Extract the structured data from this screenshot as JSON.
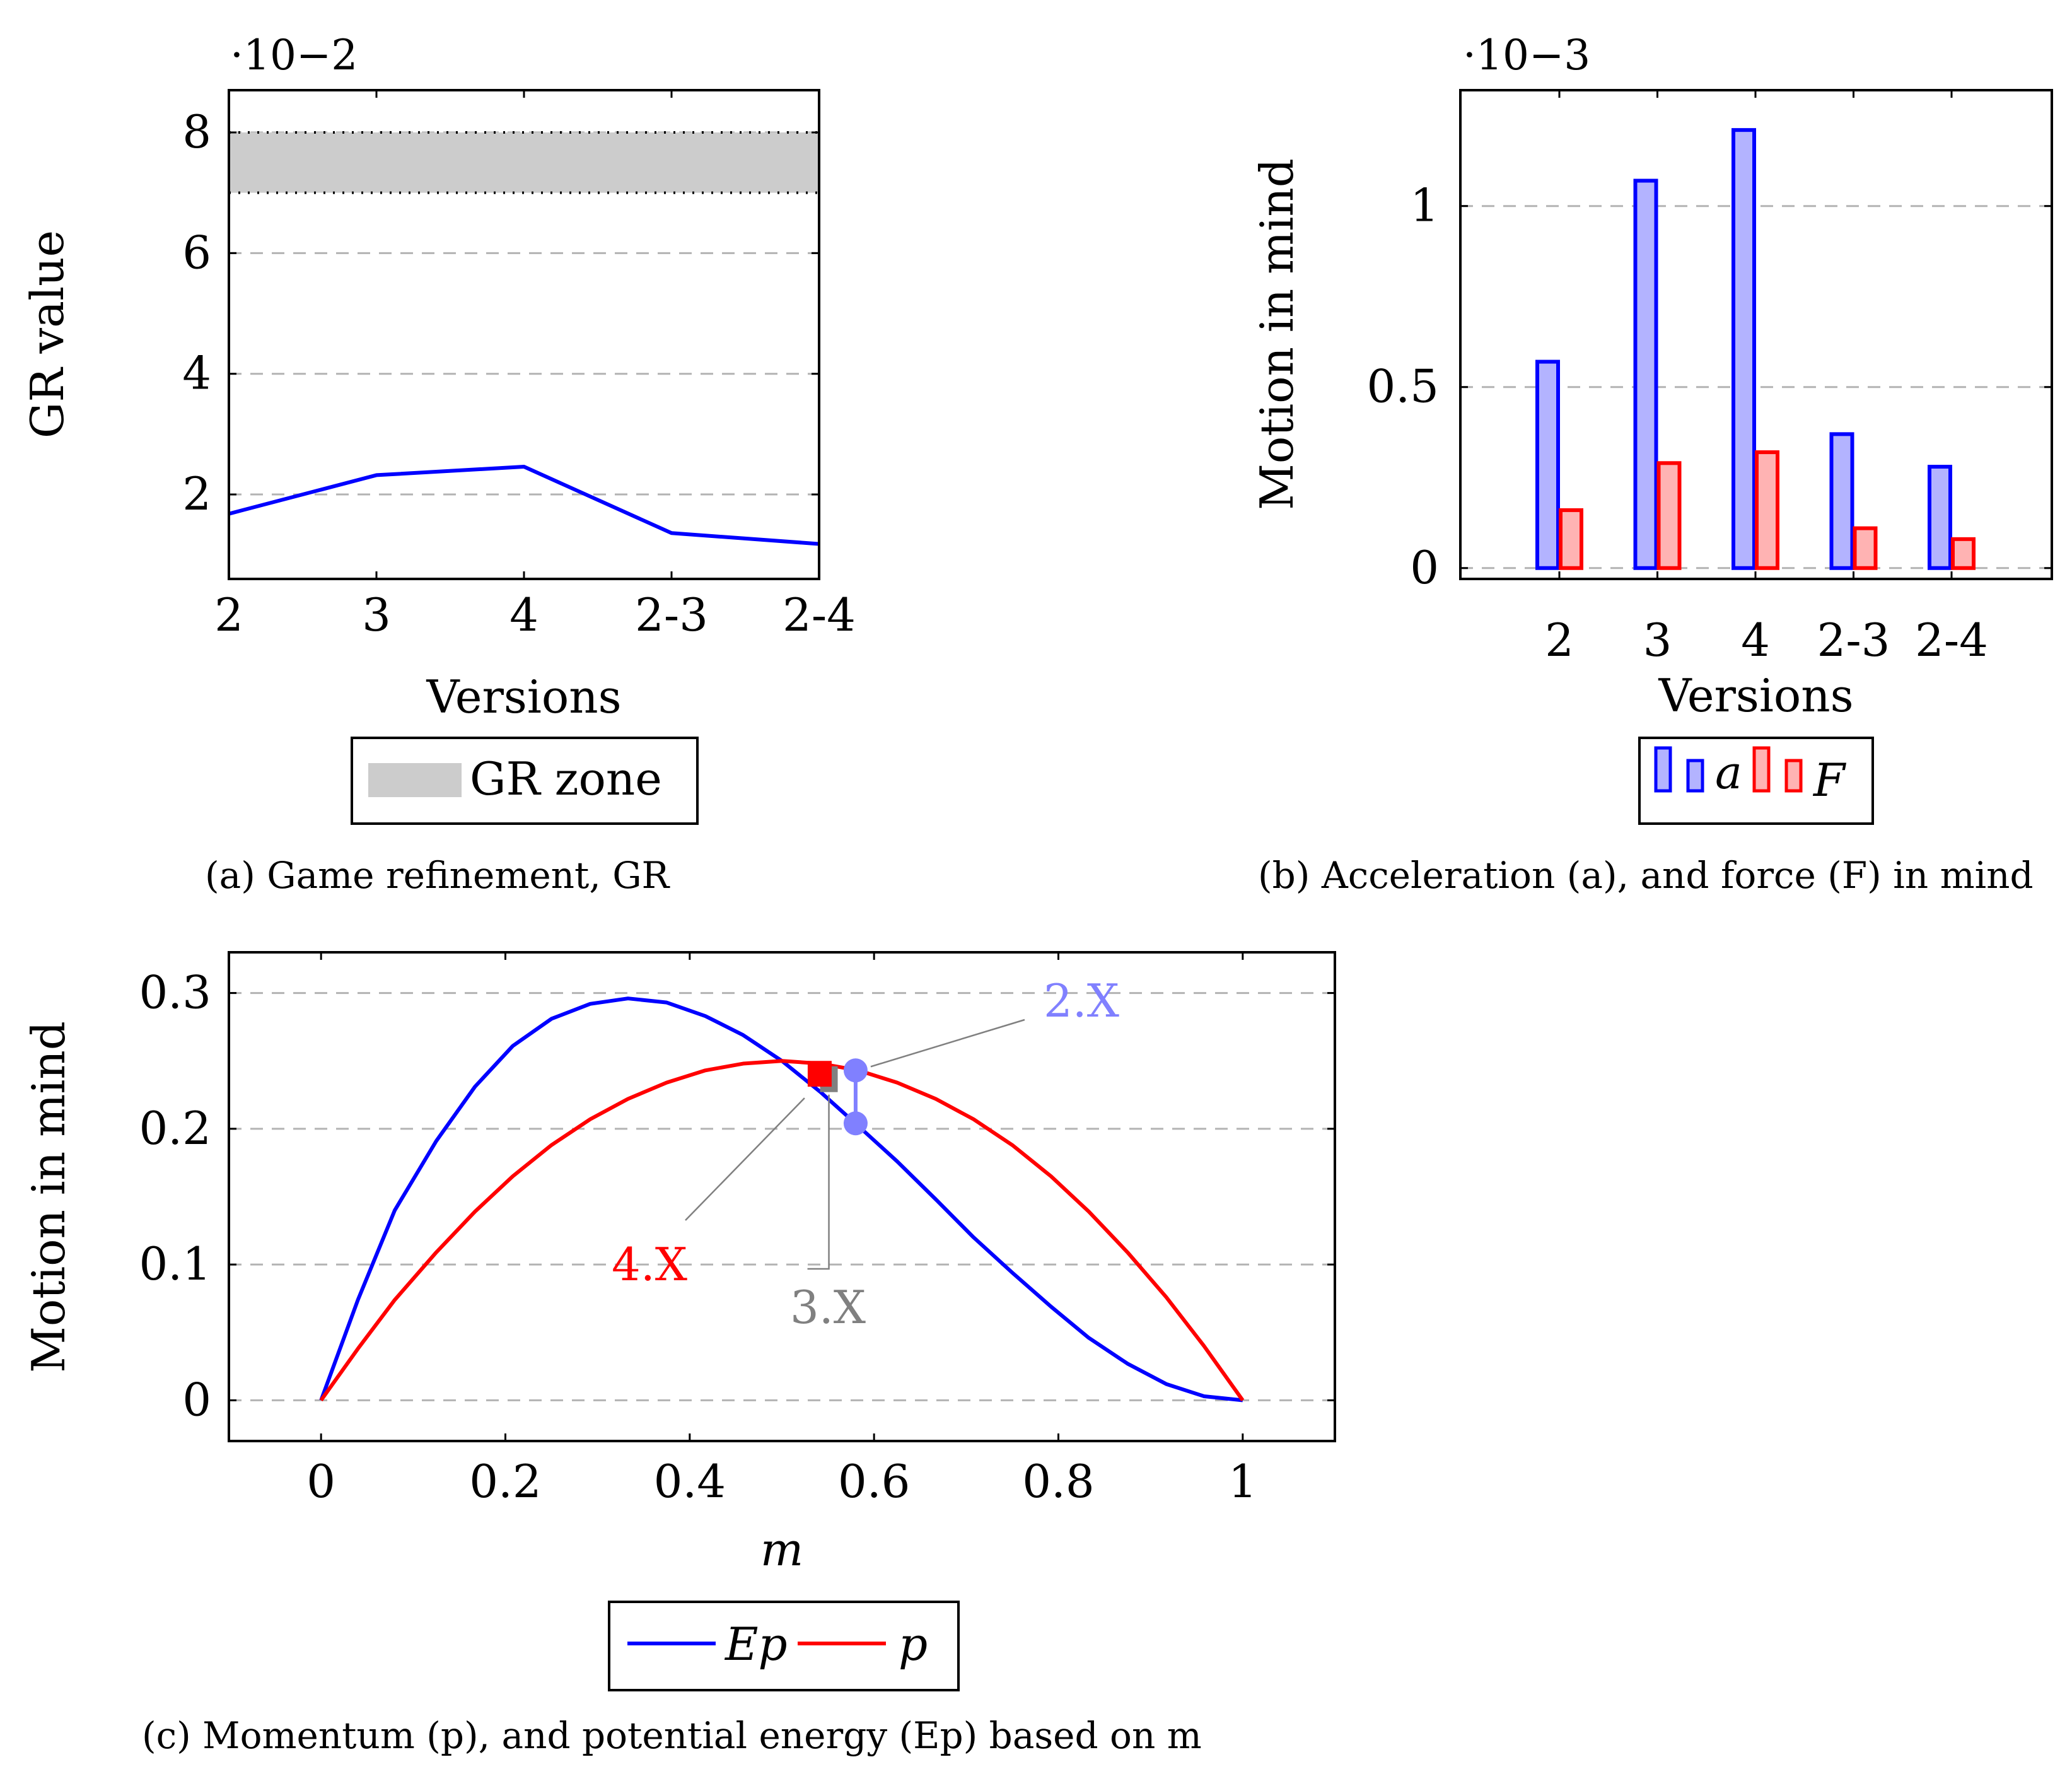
{
  "chart_data": [
    {
      "type": "line",
      "id": "a",
      "caption": "(a)  Game refinement, GR",
      "xlabel": "Versions",
      "ylabel": "GR value",
      "exponent_label": "·10−2",
      "categories": [
        "2",
        "3",
        "4",
        "2-3",
        "2-4"
      ],
      "series": [
        {
          "name": "GR",
          "values": [
            1.68,
            2.32,
            2.46,
            1.36,
            1.18
          ],
          "color": "#0000ff"
        }
      ],
      "band": {
        "name": "GR zone",
        "from": 7,
        "to": 8,
        "color": "#cccccc"
      },
      "yticks": [
        2,
        4,
        6,
        8
      ],
      "ylim": [
        0.6,
        8.7
      ],
      "legend": {
        "label": "GR zone"
      }
    },
    {
      "type": "bar",
      "id": "b",
      "caption": "(b)  Acceleration (a), and force (F) in mind",
      "xlabel": "Versions",
      "ylabel": "Motion in mind",
      "exponent_label": "·10−3",
      "categories": [
        "2",
        "3",
        "4",
        "2-3",
        "2-4"
      ],
      "series": [
        {
          "name": "a",
          "values": [
            0.57,
            1.07,
            1.21,
            0.37,
            0.28
          ],
          "color": "#0000ff",
          "fill": "#b3b3ff"
        },
        {
          "name": "F",
          "values": [
            0.16,
            0.29,
            0.32,
            0.11,
            0.08
          ],
          "color": "#ff0000",
          "fill": "#ffb3b3"
        }
      ],
      "yticks": [
        "0",
        "0.5",
        "1"
      ],
      "ylim": [
        -0.03,
        1.32
      ],
      "legend": {
        "labels": [
          "a",
          "F"
        ]
      }
    },
    {
      "type": "line",
      "id": "c",
      "caption": "(c)  Momentum (p), and potential energy (Ep) based on m",
      "xlabel": "m",
      "ylabel": "Motion in mind",
      "xlim": [
        -0.1,
        1.1
      ],
      "ylim": [
        -0.03,
        0.33
      ],
      "xticks": [
        "0",
        "0.2",
        "0.4",
        "0.6",
        "0.8",
        "1"
      ],
      "yticks": [
        "0",
        "0.1",
        "0.2",
        "0.3"
      ],
      "series": [
        {
          "name": "Ep",
          "color": "#0000ff",
          "x": [
            0,
            0.04,
            0.08,
            0.125,
            0.167,
            0.208,
            0.25,
            0.292,
            0.333,
            0.375,
            0.417,
            0.458,
            0.5,
            0.542,
            0.583,
            0.625,
            0.667,
            0.708,
            0.75,
            0.792,
            0.833,
            0.875,
            0.917,
            0.958,
            1
          ],
          "y": [
            0,
            0.074,
            0.14,
            0.191,
            0.231,
            0.261,
            0.281,
            0.292,
            0.296,
            0.293,
            0.283,
            0.269,
            0.25,
            0.227,
            0.202,
            0.176,
            0.148,
            0.12,
            0.094,
            0.069,
            0.046,
            0.027,
            0.012,
            0.003,
            0
          ]
        },
        {
          "name": "p",
          "color": "#ff0000",
          "x": [
            0,
            0.04,
            0.08,
            0.125,
            0.167,
            0.208,
            0.25,
            0.292,
            0.333,
            0.375,
            0.417,
            0.458,
            0.5,
            0.542,
            0.583,
            0.625,
            0.667,
            0.708,
            0.75,
            0.792,
            0.833,
            0.875,
            0.917,
            0.958,
            1
          ],
          "y": [
            0,
            0.038,
            0.074,
            0.109,
            0.139,
            0.165,
            0.188,
            0.207,
            0.222,
            0.234,
            0.243,
            0.248,
            0.25,
            0.248,
            0.243,
            0.234,
            0.222,
            0.207,
            0.188,
            0.165,
            0.139,
            0.109,
            0.076,
            0.04,
            0
          ]
        }
      ],
      "annotations": [
        {
          "label": "2.X",
          "color": "#8080ff",
          "x": 0.58,
          "y_top": 0.243,
          "y_bottom": 0.204
        },
        {
          "label": "3.X",
          "color": "#808080",
          "x": 0.551,
          "y_top": 0.246,
          "y_bottom": 0.227
        },
        {
          "label": "4.X",
          "color": "#ff0000",
          "x": 0.541,
          "y_top": 0.25,
          "y_bottom": 0.231
        }
      ],
      "legend": {
        "labels": [
          "Ep",
          "p"
        ]
      }
    }
  ]
}
